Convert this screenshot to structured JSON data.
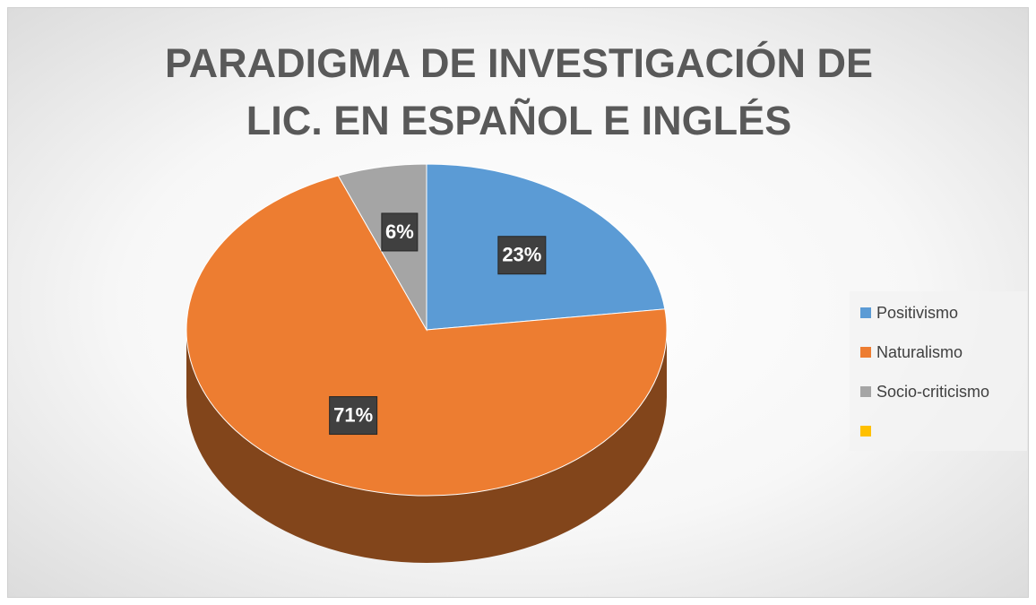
{
  "chart_data": {
    "type": "pie",
    "title": "PARADIGMA DE INVESTIGACIÓN DE LIC. EN ESPAÑOL E INGLÉS",
    "categories": [
      "Positivismo",
      "Naturalismo",
      "Socio-criticismo",
      null
    ],
    "values": [
      23,
      71,
      6,
      null
    ],
    "value_labels": [
      "23%",
      "71%",
      "6%",
      null
    ],
    "colors": [
      "#5b9bd5",
      "#ed7d31",
      "#a5a5a5",
      "#ffc000"
    ],
    "legend": "right"
  }
}
